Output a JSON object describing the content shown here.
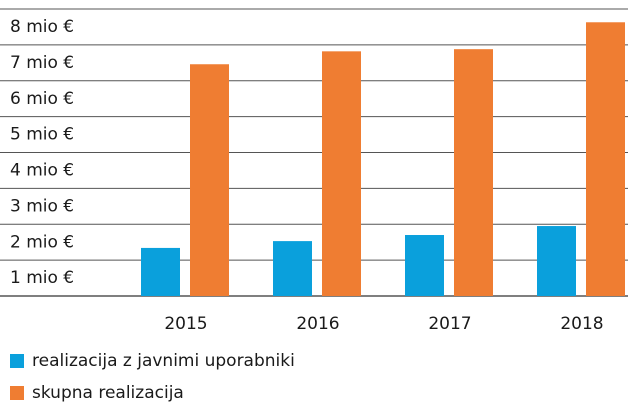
{
  "chart_data": {
    "type": "bar",
    "categories": [
      "2015",
      "2016",
      "2017",
      "2018"
    ],
    "series": [
      {
        "name": "realizacija z javnimi uporabniki",
        "color": "#0aa0dc",
        "values": [
          1.34,
          1.53,
          1.7,
          1.95
        ]
      },
      {
        "name": "skupna realizacija",
        "color": "#ef7d32",
        "values": [
          6.46,
          6.82,
          6.88,
          7.63
        ]
      }
    ],
    "ylim": [
      0,
      8
    ],
    "yticks": [
      {
        "value": 1,
        "label": "1 mio €"
      },
      {
        "value": 2,
        "label": "2 mio €"
      },
      {
        "value": 3,
        "label": "3 mio €"
      },
      {
        "value": 4,
        "label": "4 mio €"
      },
      {
        "value": 5,
        "label": "5 mio €"
      },
      {
        "value": 6,
        "label": "6 mio €"
      },
      {
        "value": 7,
        "label": "7 mio €"
      },
      {
        "value": 8,
        "label": "8 mio €"
      }
    ],
    "grid": true
  }
}
